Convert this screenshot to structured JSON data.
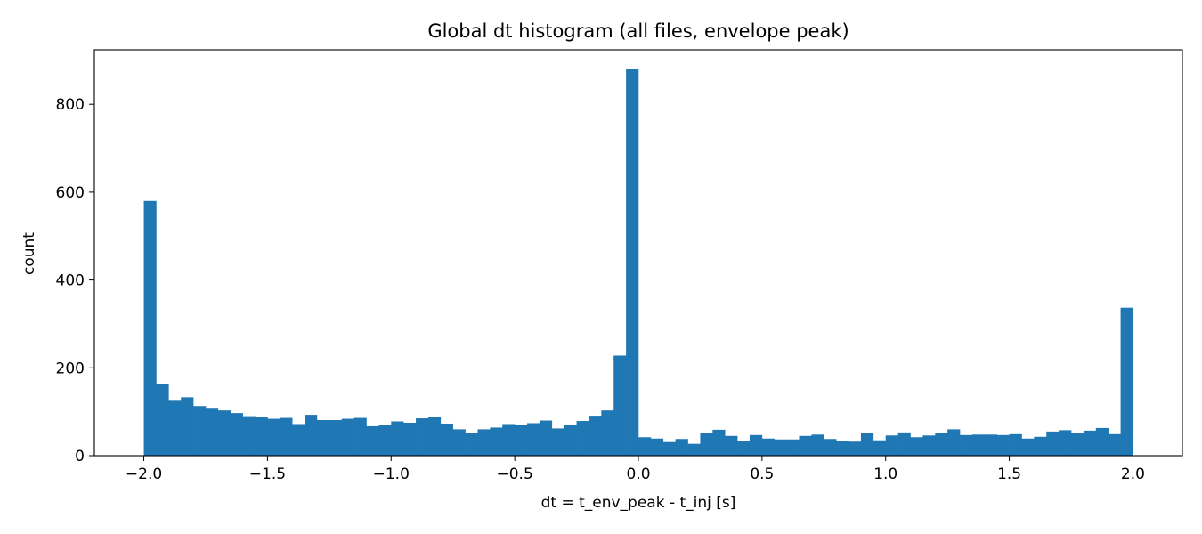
{
  "chart_data": {
    "type": "bar",
    "title": "Global dt histogram (all files, envelope peak)",
    "xlabel": "dt = t_env_peak - t_inj [s]",
    "ylabel": "count",
    "xlim": [
      -2.2,
      2.2
    ],
    "ylim": [
      0,
      924
    ],
    "grid": false,
    "bar_color": "#1f77b4",
    "bin_start": -2.0,
    "bin_width": 0.05,
    "x_ticks": [
      -2.0,
      -1.5,
      -1.0,
      -0.5,
      0.0,
      0.5,
      1.0,
      1.5,
      2.0
    ],
    "x_tick_labels": [
      "−2.0",
      "−1.5",
      "−1.0",
      "−0.5",
      "0.0",
      "0.5",
      "1.0",
      "1.5",
      "2.0"
    ],
    "y_ticks": [
      0,
      200,
      400,
      600,
      800
    ],
    "y_tick_labels": [
      "0",
      "200",
      "400",
      "600",
      "800"
    ],
    "values": [
      580,
      163,
      127,
      133,
      113,
      109,
      103,
      97,
      90,
      89,
      84,
      86,
      72,
      93,
      81,
      81,
      84,
      86,
      67,
      69,
      78,
      75,
      85,
      88,
      73,
      60,
      52,
      60,
      64,
      72,
      69,
      74,
      80,
      62,
      71,
      79,
      91,
      103,
      228,
      880,
      42,
      39,
      31,
      38,
      27,
      51,
      59,
      45,
      33,
      47,
      39,
      37,
      37,
      45,
      48,
      38,
      33,
      32,
      51,
      35,
      46,
      53,
      42,
      46,
      52,
      60,
      47,
      48,
      48,
      47,
      49,
      39,
      43,
      55,
      58,
      51,
      57,
      63,
      49,
      337
    ]
  }
}
